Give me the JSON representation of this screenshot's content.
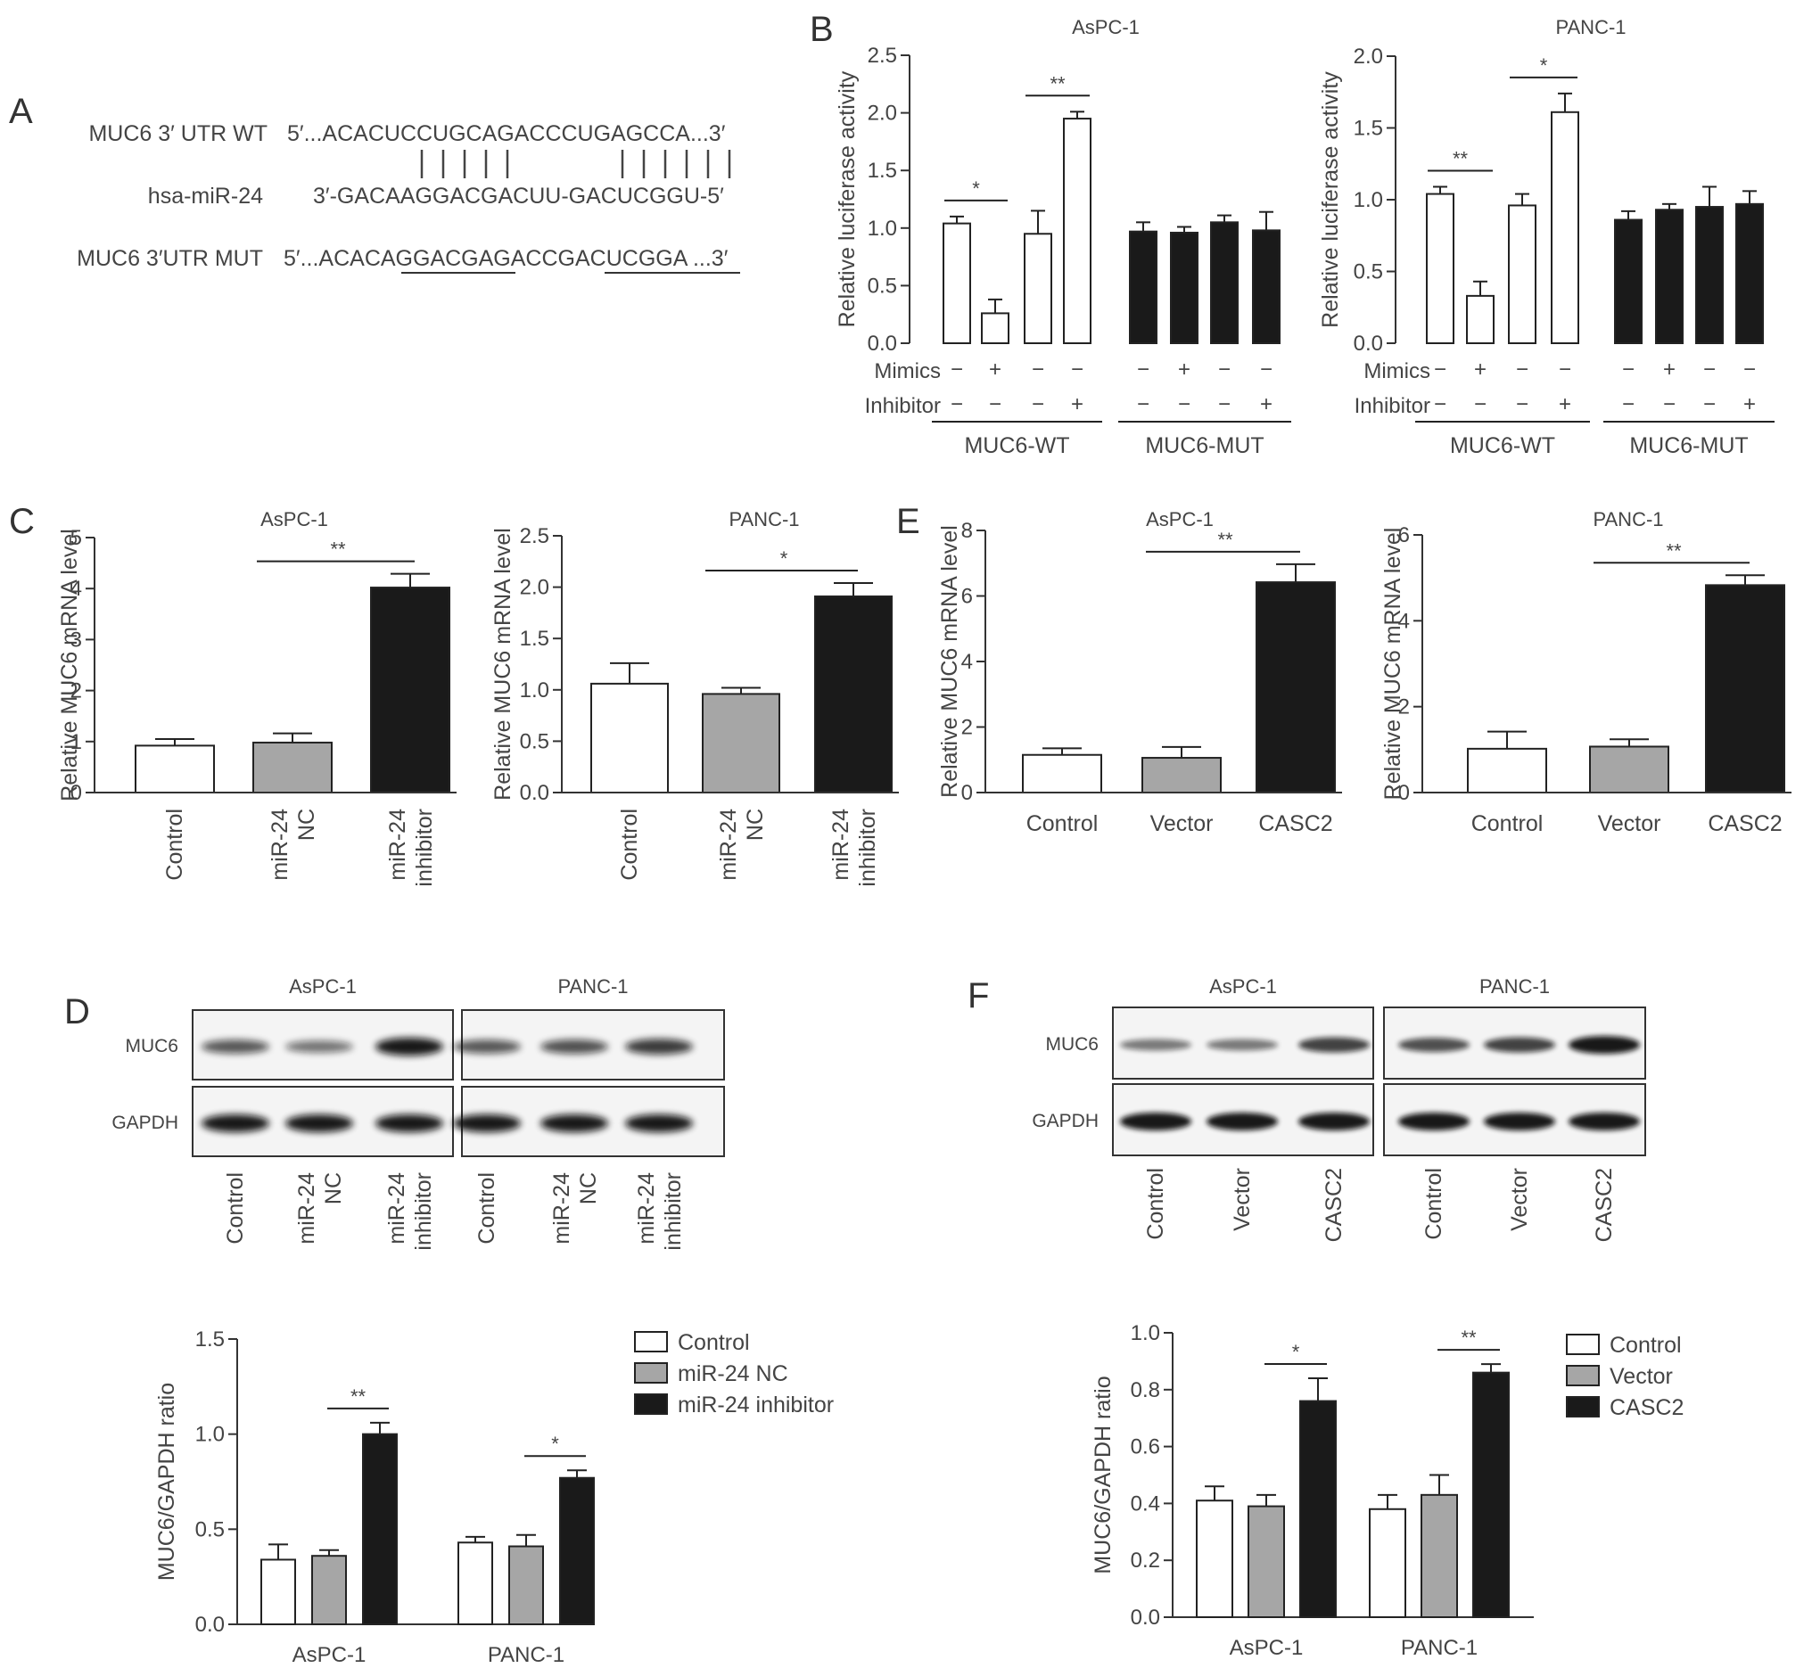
{
  "panels": {
    "a": "A",
    "b": "B",
    "c": "C",
    "d": "D",
    "e": "E",
    "f": "F"
  },
  "panel_a": {
    "rows": [
      {
        "label": "MUC6 3′ UTR WT",
        "seq": "5′...ACACUCCUGCAGACCCUGAGCCA...3′"
      },
      {
        "label": "hsa-miR-24",
        "seq": "3′-GACAAGGACGACUU-GACUCGGU-5′"
      },
      {
        "label": "MUC6 3′UTR MUT",
        "seq": "5′...ACACAGGACGAGACCGACUCGGA ...3′"
      }
    ]
  },
  "chart_data": [
    {
      "id": "B-AsPC-1",
      "type": "bar",
      "title": "AsPC-1",
      "ylabel": "Relative luciferase activity",
      "ylim": [
        0,
        2.5
      ],
      "yticks": [
        "0.0",
        "0.5",
        "1.0",
        "1.5",
        "2.0",
        "2.5"
      ],
      "values": [
        1.04,
        0.26,
        0.95,
        1.95,
        0.97,
        0.96,
        1.05,
        0.98
      ],
      "errors": [
        0.06,
        0.12,
        0.2,
        0.06,
        0.08,
        0.05,
        0.06,
        0.16
      ],
      "fills": [
        "white",
        "white",
        "white",
        "white",
        "black",
        "black",
        "black",
        "black"
      ],
      "rows": [
        {
          "label": "Mimics",
          "marks": [
            "−",
            "+",
            "−",
            "−",
            "−",
            "+",
            "−",
            "−"
          ]
        },
        {
          "label": "Inhibitor",
          "marks": [
            "−",
            "−",
            "−",
            "+",
            "−",
            "−",
            "−",
            "+"
          ]
        }
      ],
      "groups": [
        "MUC6-WT",
        "MUC6-MUT"
      ],
      "significance": [
        {
          "bars": [
            0,
            1
          ],
          "label": "*"
        },
        {
          "bars": [
            2,
            3
          ],
          "label": "**"
        }
      ]
    },
    {
      "id": "B-PANC-1",
      "type": "bar",
      "title": "PANC-1",
      "ylabel": "Relative luciferase activity",
      "ylim": [
        0,
        2.0
      ],
      "yticks": [
        "0.0",
        "0.5",
        "1.0",
        "1.5",
        "2.0"
      ],
      "values": [
        1.04,
        0.33,
        0.96,
        1.61,
        0.86,
        0.93,
        0.95,
        0.97
      ],
      "errors": [
        0.05,
        0.1,
        0.08,
        0.13,
        0.06,
        0.04,
        0.14,
        0.09
      ],
      "fills": [
        "white",
        "white",
        "white",
        "white",
        "black",
        "black",
        "black",
        "black"
      ],
      "rows": [
        {
          "label": "Mimics",
          "marks": [
            "−",
            "+",
            "−",
            "−",
            "−",
            "+",
            "−",
            "−"
          ]
        },
        {
          "label": "Inhibitor",
          "marks": [
            "−",
            "−",
            "−",
            "+",
            "−",
            "−",
            "−",
            "+"
          ]
        }
      ],
      "groups": [
        "MUC6-WT",
        "MUC6-MUT"
      ],
      "significance": [
        {
          "bars": [
            0,
            1
          ],
          "label": "**"
        },
        {
          "bars": [
            2,
            3
          ],
          "label": "*"
        }
      ]
    },
    {
      "id": "C-AsPC-1",
      "type": "bar",
      "title": "AsPC-1",
      "ylabel": "Relative MUC6 mRNA level",
      "ylim": [
        0,
        5
      ],
      "yticks": [
        "0",
        "1",
        "2",
        "3",
        "4",
        "5"
      ],
      "categories": [
        [
          "Control"
        ],
        [
          "miR-24",
          "NC"
        ],
        [
          "miR-24",
          "inhibitor"
        ]
      ],
      "values": [
        0.92,
        0.98,
        4.02
      ],
      "errors": [
        0.13,
        0.18,
        0.27
      ],
      "fills": [
        "white",
        "gray",
        "black"
      ],
      "significance": [
        {
          "bars": [
            1,
            2
          ],
          "label": "**"
        }
      ]
    },
    {
      "id": "C-PANC-1",
      "type": "bar",
      "title": "PANC-1",
      "ylabel": "Relative MUC6 mRNA level",
      "ylim": [
        0,
        2.5
      ],
      "yticks": [
        "0.0",
        "0.5",
        "1.0",
        "1.5",
        "2.0",
        "2.5"
      ],
      "categories": [
        [
          "Control"
        ],
        [
          "miR-24",
          "NC"
        ],
        [
          "miR-24",
          "inhibitor"
        ]
      ],
      "values": [
        1.06,
        0.96,
        1.91
      ],
      "errors": [
        0.2,
        0.06,
        0.13
      ],
      "fills": [
        "white",
        "gray",
        "black"
      ],
      "significance": [
        {
          "bars": [
            1,
            2
          ],
          "label": "*"
        }
      ]
    },
    {
      "id": "E-AsPC-1",
      "type": "bar",
      "title": "AsPC-1",
      "ylabel": "Relative MUC6 mRNA level",
      "ylim": [
        0,
        8
      ],
      "yticks": [
        "0",
        "2",
        "4",
        "6",
        "8"
      ],
      "categories": [
        [
          "Control"
        ],
        [
          "Vector"
        ],
        [
          "CASC2"
        ]
      ],
      "values": [
        1.15,
        1.06,
        6.42
      ],
      "errors": [
        0.2,
        0.33,
        0.55
      ],
      "fills": [
        "white",
        "gray",
        "black"
      ],
      "significance": [
        {
          "bars": [
            1,
            2
          ],
          "label": "**"
        }
      ]
    },
    {
      "id": "E-PANC-1",
      "type": "bar",
      "title": "PANC-1",
      "ylabel": "Relative MUC6 mRNA level",
      "ylim": [
        0,
        6
      ],
      "yticks": [
        "0",
        "2",
        "4",
        "6"
      ],
      "categories": [
        [
          "Control"
        ],
        [
          "Vector"
        ],
        [
          "CASC2"
        ]
      ],
      "values": [
        1.02,
        1.07,
        4.83
      ],
      "errors": [
        0.4,
        0.17,
        0.23
      ],
      "fills": [
        "white",
        "gray",
        "black"
      ],
      "significance": [
        {
          "bars": [
            1,
            2
          ],
          "label": "**"
        }
      ]
    },
    {
      "id": "D-ratio",
      "type": "bar",
      "title": "",
      "ylabel": "MUC6/GAPDH ratio",
      "ylim": [
        0,
        1.5
      ],
      "yticks": [
        "0.0",
        "0.5",
        "1.0",
        "1.5"
      ],
      "categories": [
        "AsPC-1",
        "PANC-1"
      ],
      "series": [
        {
          "name": "Control",
          "fill": "white",
          "values": [
            0.34,
            0.43
          ],
          "errors": [
            0.08,
            0.03
          ]
        },
        {
          "name": "miR-24 NC",
          "fill": "gray",
          "values": [
            0.36,
            0.41
          ],
          "errors": [
            0.03,
            0.06
          ]
        },
        {
          "name": "miR-24 inhibitor",
          "fill": "black",
          "values": [
            1.0,
            0.77
          ],
          "errors": [
            0.06,
            0.04
          ]
        }
      ],
      "significance": [
        {
          "group": 0,
          "label": "**"
        },
        {
          "group": 1,
          "label": "*"
        }
      ]
    },
    {
      "id": "F-ratio",
      "type": "bar",
      "title": "",
      "ylabel": "MUC6/GAPDH ratio",
      "ylim": [
        0,
        1.0
      ],
      "yticks": [
        "0.0",
        "0.2",
        "0.4",
        "0.6",
        "0.8",
        "1.0"
      ],
      "categories": [
        "AsPC-1",
        "PANC-1"
      ],
      "series": [
        {
          "name": "Control",
          "fill": "white",
          "values": [
            0.41,
            0.38
          ],
          "errors": [
            0.05,
            0.05
          ]
        },
        {
          "name": "Vector",
          "fill": "gray",
          "values": [
            0.39,
            0.43
          ],
          "errors": [
            0.04,
            0.07
          ]
        },
        {
          "name": "CASC2",
          "fill": "black",
          "values": [
            0.76,
            0.86
          ],
          "errors": [
            0.08,
            0.03
          ]
        }
      ],
      "significance": [
        {
          "group": 0,
          "label": "*"
        },
        {
          "group": 1,
          "label": "**"
        }
      ]
    }
  ],
  "blots": [
    {
      "id": "D-blot",
      "titles": [
        "AsPC-1",
        "PANC-1"
      ],
      "rows": [
        "MUC6",
        "GAPDH"
      ],
      "lanes": [
        [
          "Control"
        ],
        [
          "miR-24",
          "NC"
        ],
        [
          "miR-24",
          "inhibitor"
        ],
        [
          "Control"
        ],
        [
          "miR-24",
          "NC"
        ],
        [
          "miR-24",
          "inhibitor"
        ]
      ],
      "muc6_intensity": [
        0.55,
        0.35,
        1.0,
        0.55,
        0.6,
        0.75
      ]
    },
    {
      "id": "F-blot",
      "titles": [
        "AsPC-1",
        "PANC-1"
      ],
      "rows": [
        "MUC6",
        "GAPDH"
      ],
      "lanes": [
        [
          "Control"
        ],
        [
          "Vector"
        ],
        [
          "CASC2"
        ],
        [
          "Control"
        ],
        [
          "Vector"
        ],
        [
          "CASC2"
        ]
      ],
      "muc6_intensity": [
        0.3,
        0.3,
        0.7,
        0.6,
        0.7,
        1.0
      ]
    }
  ]
}
